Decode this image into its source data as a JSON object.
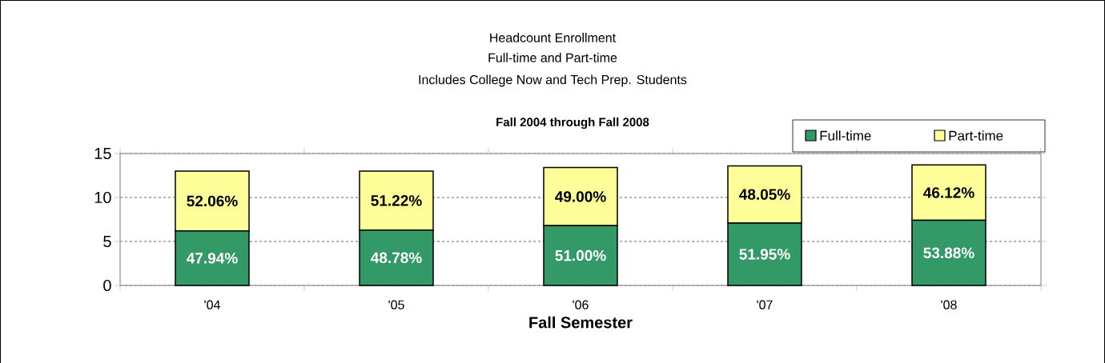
{
  "chart_data": {
    "type": "bar",
    "title": "Headcount Enrollment",
    "subtitle": "Full-time and Part-time",
    "annotations": [
      "Includes College Now and Tech Prep. Students",
      "Fall 2004 through Fall 2008",
      "47.94%",
      "48.78%",
      "51.00%",
      "51.95%",
      "53.88%",
      "52.06%",
      "51.22%",
      "49.00%",
      "48.05%",
      "46.12%"
    ],
    "xlabel": "Fall Semester",
    "categories": [
      "'04",
      "'05",
      "'06",
      "'07",
      "'08"
    ],
    "stacked": true,
    "ylim": [
      0,
      15
    ],
    "yticks": [
      0,
      5,
      10,
      15
    ],
    "grid": "y",
    "legend": "top right",
    "series": [
      {
        "name": "Full-time",
        "color": "#339966",
        "values": [
          6.2,
          6.3,
          6.8,
          7.1,
          7.4
        ]
      },
      {
        "name": "Part-time",
        "color": "#ffff99",
        "values": [
          6.8,
          6.7,
          6.6,
          6.5,
          6.3
        ]
      }
    ]
  }
}
